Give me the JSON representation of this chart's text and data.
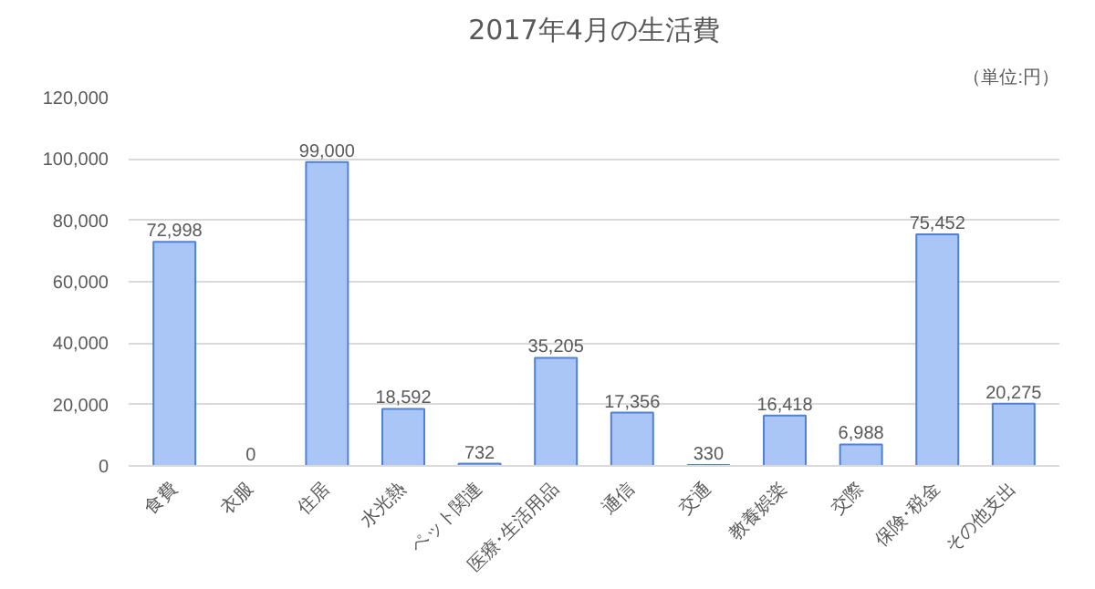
{
  "chart_data": {
    "type": "bar",
    "title": "2017年4月の生活費",
    "annotations": [
      "（単位:円）"
    ],
    "categories": [
      "食費",
      "衣服",
      "住居",
      "水光熱",
      "ペット関連",
      "医療･生活用品",
      "通信",
      "交通",
      "教養娯楽",
      "交際",
      "保険･税金",
      "その他支出"
    ],
    "values": [
      72998,
      0,
      99000,
      18592,
      732,
      35205,
      17356,
      330,
      16418,
      6988,
      75452,
      20275
    ],
    "value_labels": [
      "72,998",
      "0",
      "99,000",
      "18,592",
      "732",
      "35,205",
      "17,356",
      "330",
      "16,418",
      "6,988",
      "75,452",
      "20,275"
    ],
    "color": "#a9c6f7",
    "ylim": [
      0,
      120000
    ],
    "yticks": [
      {
        "value": 0,
        "label": "0"
      },
      {
        "value": 20000,
        "label": "20,000"
      },
      {
        "value": 40000,
        "label": "40,000"
      },
      {
        "value": 60000,
        "label": "60,000"
      },
      {
        "value": 80000,
        "label": "80,000"
      },
      {
        "value": 100000,
        "label": "100,000"
      },
      {
        "value": 120000,
        "label": "120,000"
      }
    ],
    "grid": "y"
  }
}
